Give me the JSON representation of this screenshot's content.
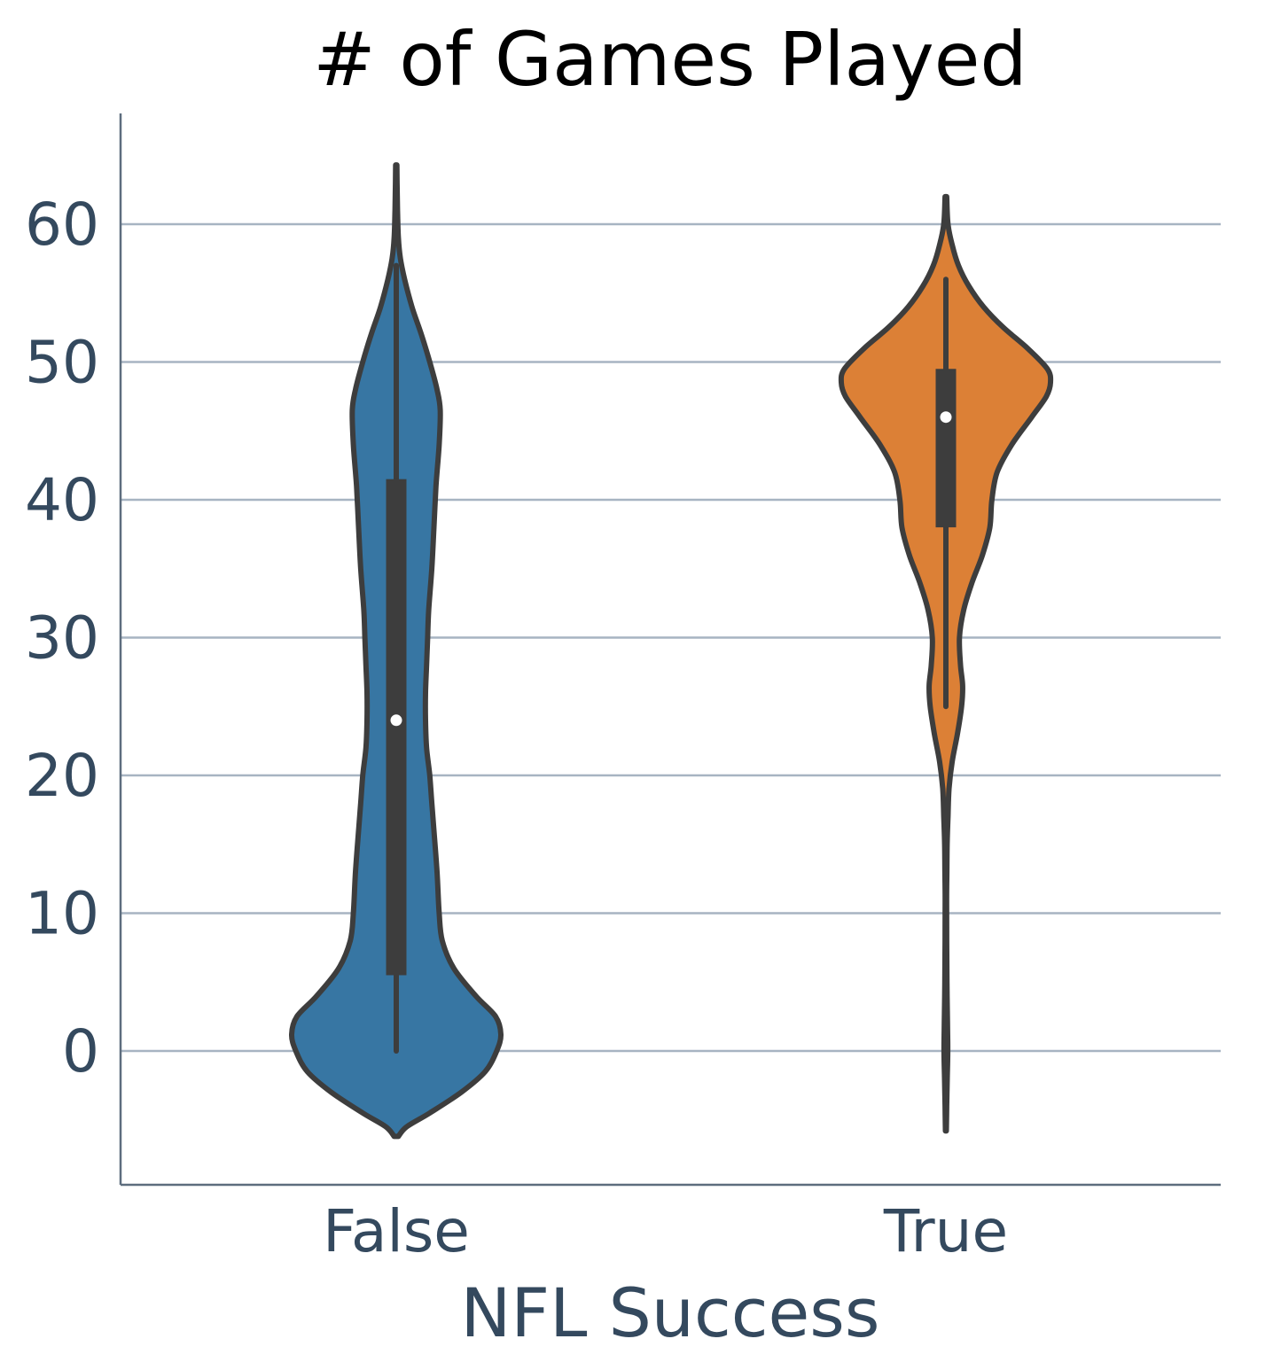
{
  "chart_data": {
    "type": "violin",
    "title": "# of Games Played",
    "xlabel": "NFL Success",
    "ylabel": "",
    "categories": [
      "False",
      "True"
    ],
    "yticks": [
      0,
      10,
      20,
      30,
      40,
      50,
      60
    ],
    "ylim": [
      -9.5,
      68
    ],
    "grid": "horizontal",
    "series": [
      {
        "category": "False",
        "color": "#3776a3",
        "whisker_low": 0,
        "q1": 5.5,
        "median": 24,
        "q3": 41.5,
        "whisker_high": 57,
        "density": [
          [
            -6.2,
            0.02
          ],
          [
            -5.5,
            0.1
          ],
          [
            -4.5,
            0.32
          ],
          [
            -3,
            0.62
          ],
          [
            -1.5,
            0.85
          ],
          [
            0,
            0.96
          ],
          [
            1.2,
            1.0
          ],
          [
            2.5,
            0.95
          ],
          [
            4,
            0.76
          ],
          [
            6,
            0.55
          ],
          [
            8,
            0.44
          ],
          [
            10,
            0.41
          ],
          [
            13,
            0.39
          ],
          [
            16,
            0.36
          ],
          [
            18,
            0.34
          ],
          [
            20,
            0.32
          ],
          [
            22,
            0.29
          ],
          [
            24,
            0.28
          ],
          [
            26,
            0.28
          ],
          [
            28,
            0.29
          ],
          [
            30,
            0.3
          ],
          [
            32,
            0.31
          ],
          [
            35,
            0.34
          ],
          [
            38,
            0.36
          ],
          [
            41,
            0.38
          ],
          [
            44,
            0.41
          ],
          [
            46.5,
            0.42
          ],
          [
            48,
            0.39
          ],
          [
            50,
            0.32
          ],
          [
            52,
            0.24
          ],
          [
            54,
            0.15
          ],
          [
            56,
            0.08
          ],
          [
            57.5,
            0.04
          ],
          [
            59,
            0.02
          ],
          [
            61,
            0.012
          ],
          [
            63,
            0.008
          ],
          [
            64.3,
            0.006
          ]
        ]
      },
      {
        "category": "True",
        "color": "#dc8036",
        "whisker_low": 25,
        "q1": 38,
        "median": 46,
        "q3": 49.5,
        "whisker_high": 56,
        "density": [
          [
            -5.8,
            0.004
          ],
          [
            -4,
            0.008
          ],
          [
            -2,
            0.013
          ],
          [
            0,
            0.018
          ],
          [
            2,
            0.015
          ],
          [
            5,
            0.01
          ],
          [
            8,
            0.008
          ],
          [
            11,
            0.007
          ],
          [
            13,
            0.009
          ],
          [
            15,
            0.012
          ],
          [
            17,
            0.02
          ],
          [
            19,
            0.03
          ],
          [
            21,
            0.06
          ],
          [
            23,
            0.11
          ],
          [
            25,
            0.15
          ],
          [
            26.5,
            0.16
          ],
          [
            28,
            0.14
          ],
          [
            30,
            0.13
          ],
          [
            32,
            0.17
          ],
          [
            34,
            0.25
          ],
          [
            36,
            0.35
          ],
          [
            38,
            0.42
          ],
          [
            40,
            0.44
          ],
          [
            42,
            0.49
          ],
          [
            44,
            0.63
          ],
          [
            46,
            0.82
          ],
          [
            47.5,
            0.96
          ],
          [
            48.5,
            1.0
          ],
          [
            49.5,
            0.97
          ],
          [
            51,
            0.78
          ],
          [
            52.5,
            0.55
          ],
          [
            54,
            0.36
          ],
          [
            55.5,
            0.22
          ],
          [
            57,
            0.12
          ],
          [
            58.5,
            0.06
          ],
          [
            60,
            0.02
          ],
          [
            62,
            0.008
          ]
        ]
      }
    ]
  }
}
